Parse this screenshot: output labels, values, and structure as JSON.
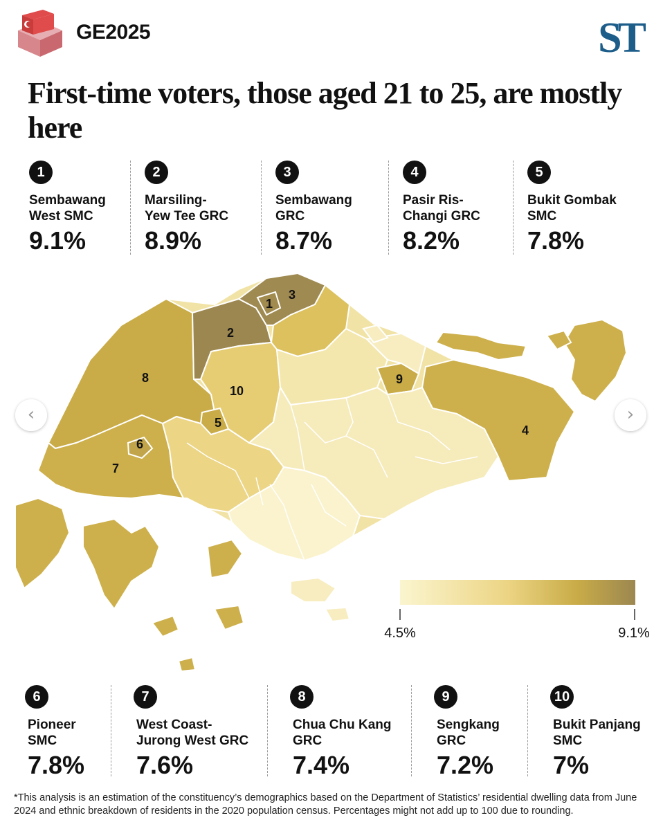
{
  "header": {
    "brand_tag": "GE2025",
    "publisher_logo": "ST",
    "ballot_icon": "ballot-box-icon"
  },
  "headline": "First-time voters, those aged 21 to 25, are mostly here",
  "top_ranks": [
    {
      "num": "1",
      "name": "Sembawang\nWest SMC",
      "value": "9.1%"
    },
    {
      "num": "2",
      "name": "Marsiling-\nYew Tee GRC",
      "value": "8.9%"
    },
    {
      "num": "3",
      "name": "Sembawang\nGRC",
      "value": "8.7%"
    },
    {
      "num": "4",
      "name": "Pasir Ris-\nChangi GRC",
      "value": "8.2%"
    },
    {
      "num": "5",
      "name": "Bukit Gombak\nSMC",
      "value": "7.8%"
    }
  ],
  "bottom_ranks": [
    {
      "num": "6",
      "name": "Pioneer\nSMC",
      "value": "7.8%"
    },
    {
      "num": "7",
      "name": "West Coast-\nJurong West GRC",
      "value": "7.6%"
    },
    {
      "num": "8",
      "name": "Chua Chu Kang\nGRC",
      "value": "7.4%"
    },
    {
      "num": "9",
      "name": "Sengkang\nGRC",
      "value": "7.2%"
    },
    {
      "num": "10",
      "name": "Bukit Panjang\nSMC",
      "value": "7%"
    }
  ],
  "map": {
    "labels": [
      "1",
      "2",
      "3",
      "4",
      "5",
      "6",
      "7",
      "8",
      "9",
      "10"
    ],
    "legend": {
      "min": "4.5%",
      "max": "9.1%"
    },
    "colors": {
      "lowest": "#fbf5cf",
      "low": "#f4e7ad",
      "mid_low": "#ecd585",
      "mid": "#dcc15e",
      "high": "#c9ac48",
      "highest": "#9c8750",
      "water": "#ffffff"
    }
  },
  "nav": {
    "prev": "‹",
    "next": "›"
  },
  "footnote": "*This analysis is an estimation of the constituency’s demographics based on the Department of Statistics’ residential dwelling data from June 2024 and ethnic breakdown of residents in the 2020 population census. Percentages might not add up to 100 due to rounding."
}
